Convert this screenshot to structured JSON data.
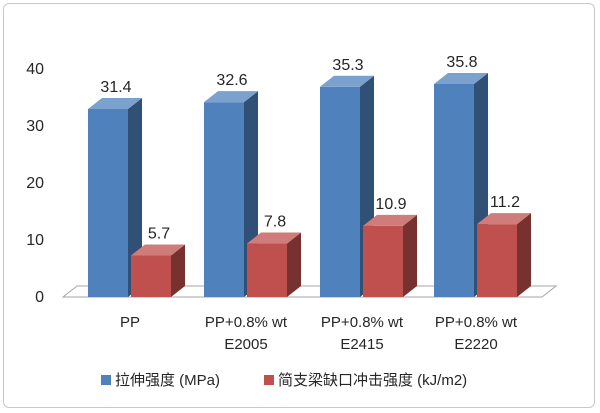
{
  "chart_data": {
    "type": "bar",
    "categories": [
      [
        "PP"
      ],
      [
        "PP+0.8% wt",
        "E2005"
      ],
      [
        "PP+0.8% wt",
        "E2415"
      ],
      [
        "PP+0.8% wt",
        "E2220"
      ]
    ],
    "series": [
      {
        "name": "拉伸强度 (MPa)",
        "values": [
          31.4,
          32.6,
          35.3,
          35.8
        ],
        "color": "#4f81bd"
      },
      {
        "name": "简支梁缺口冲击强度 (kJ/m2)",
        "values": [
          5.7,
          7.8,
          10.9,
          11.2
        ],
        "color": "#c0504d"
      }
    ],
    "data_labels": [
      [
        "31.4",
        "32.6",
        "35.3",
        "35.8"
      ],
      [
        "5.7",
        "7.8",
        "10.9",
        "11.2"
      ]
    ],
    "y_ticks": [
      "0",
      "10",
      "20",
      "30",
      "40"
    ],
    "ylim": [
      0,
      40
    ],
    "title": "",
    "xlabel": "",
    "ylabel": "",
    "grid": false,
    "legend_position": "bottom",
    "three_d": true
  }
}
